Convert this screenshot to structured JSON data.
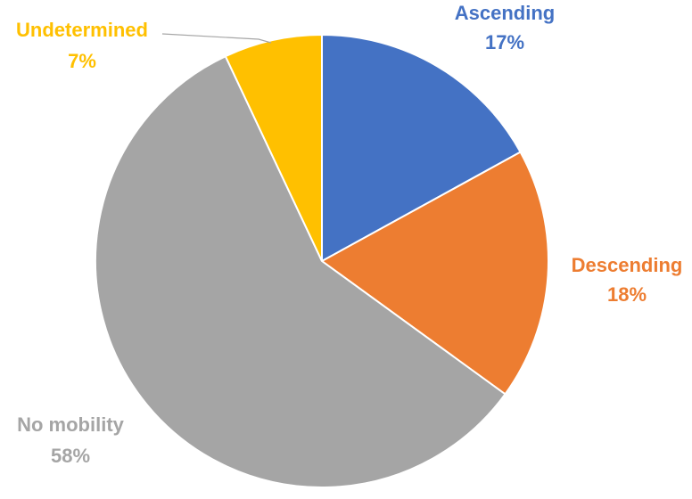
{
  "chart_data": {
    "type": "pie",
    "categories": [
      "Ascending",
      "Descending",
      "No mobility",
      "Undetermined"
    ],
    "values": [
      17,
      18,
      58,
      7
    ],
    "percent_labels": [
      "17%",
      "18%",
      "58%",
      "7%"
    ],
    "colors": [
      "#4472C4",
      "#ED7D31",
      "#A5A5A5",
      "#FFC000"
    ],
    "start": "12 o'clock",
    "direction": "clockwise",
    "legend": "none"
  }
}
